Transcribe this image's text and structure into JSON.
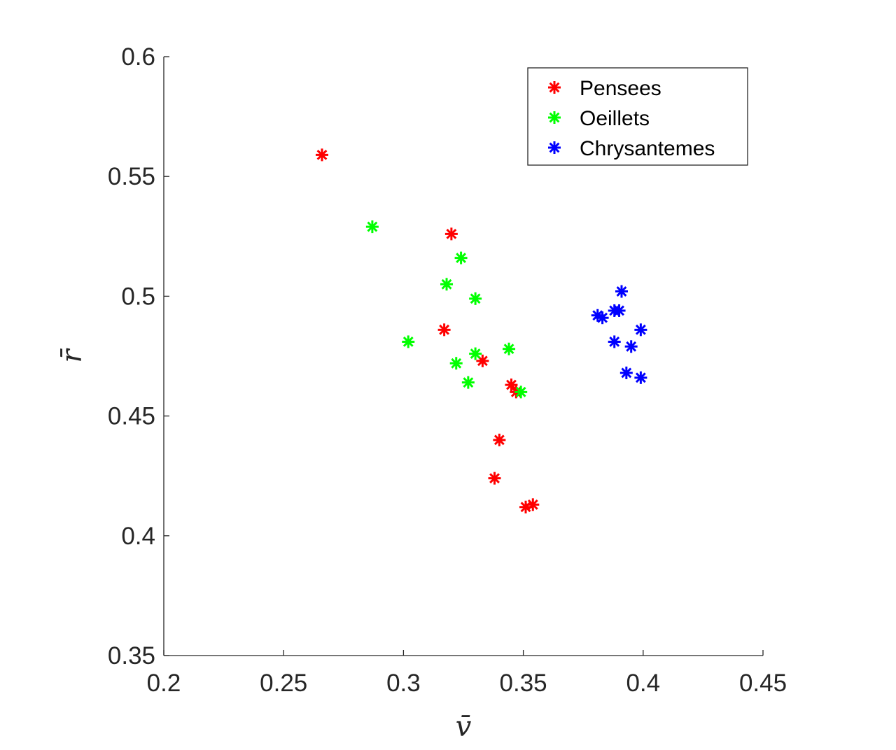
{
  "chart_data": {
    "type": "scatter",
    "xlabel": "v̄",
    "ylabel": "r̄",
    "xlim": [
      0.2,
      0.45
    ],
    "ylim": [
      0.35,
      0.6
    ],
    "xticks": [
      "0.2",
      "0.25",
      "0.3",
      "0.35",
      "0.4",
      "0.45"
    ],
    "yticks": [
      "0.35",
      "0.4",
      "0.45",
      "0.5",
      "0.55",
      "0.6"
    ],
    "marker": "asterisk",
    "grid": false,
    "legend_position": "top-right",
    "series": [
      {
        "name": "Pensees",
        "color": "#ff0000",
        "points": [
          [
            0.266,
            0.559
          ],
          [
            0.32,
            0.526
          ],
          [
            0.317,
            0.486
          ],
          [
            0.333,
            0.473
          ],
          [
            0.345,
            0.463
          ],
          [
            0.347,
            0.46
          ],
          [
            0.34,
            0.44
          ],
          [
            0.338,
            0.424
          ],
          [
            0.351,
            0.412
          ],
          [
            0.354,
            0.413
          ]
        ]
      },
      {
        "name": "Oeillets",
        "color": "#00ff00",
        "points": [
          [
            0.287,
            0.529
          ],
          [
            0.324,
            0.516
          ],
          [
            0.318,
            0.505
          ],
          [
            0.33,
            0.499
          ],
          [
            0.302,
            0.481
          ],
          [
            0.322,
            0.472
          ],
          [
            0.33,
            0.476
          ],
          [
            0.344,
            0.478
          ],
          [
            0.327,
            0.464
          ],
          [
            0.349,
            0.46
          ]
        ]
      },
      {
        "name": "Chrysantemes",
        "color": "#0000ff",
        "points": [
          [
            0.391,
            0.502
          ],
          [
            0.381,
            0.492
          ],
          [
            0.383,
            0.491
          ],
          [
            0.388,
            0.494
          ],
          [
            0.39,
            0.494
          ],
          [
            0.399,
            0.486
          ],
          [
            0.388,
            0.481
          ],
          [
            0.395,
            0.479
          ],
          [
            0.393,
            0.468
          ],
          [
            0.399,
            0.466
          ]
        ]
      }
    ]
  }
}
